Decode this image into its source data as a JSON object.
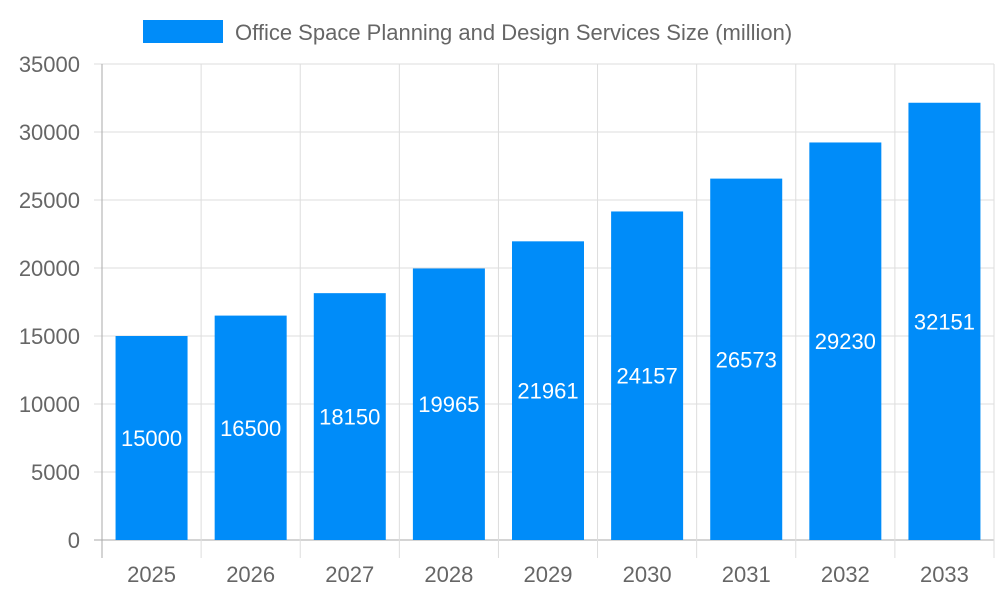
{
  "chart_data": {
    "type": "bar",
    "title": "",
    "xlabel": "",
    "ylabel": "",
    "categories": [
      "2025",
      "2026",
      "2027",
      "2028",
      "2029",
      "2030",
      "2031",
      "2032",
      "2033"
    ],
    "series": [
      {
        "name": "Office Space Planning and Design Services Size (million)",
        "values": [
          15000,
          16500,
          18150,
          19965,
          21961,
          24157,
          26573,
          29230,
          32151
        ]
      }
    ],
    "ylim": [
      0,
      35000
    ],
    "yticks": [
      0,
      5000,
      10000,
      15000,
      20000,
      25000,
      30000,
      35000
    ],
    "grid": true,
    "legend": "top-center",
    "data_labels": true,
    "colors": {
      "bar": "#008cf9",
      "text": "#666666",
      "grid": "#dddddd",
      "label": "#ffffff"
    }
  }
}
